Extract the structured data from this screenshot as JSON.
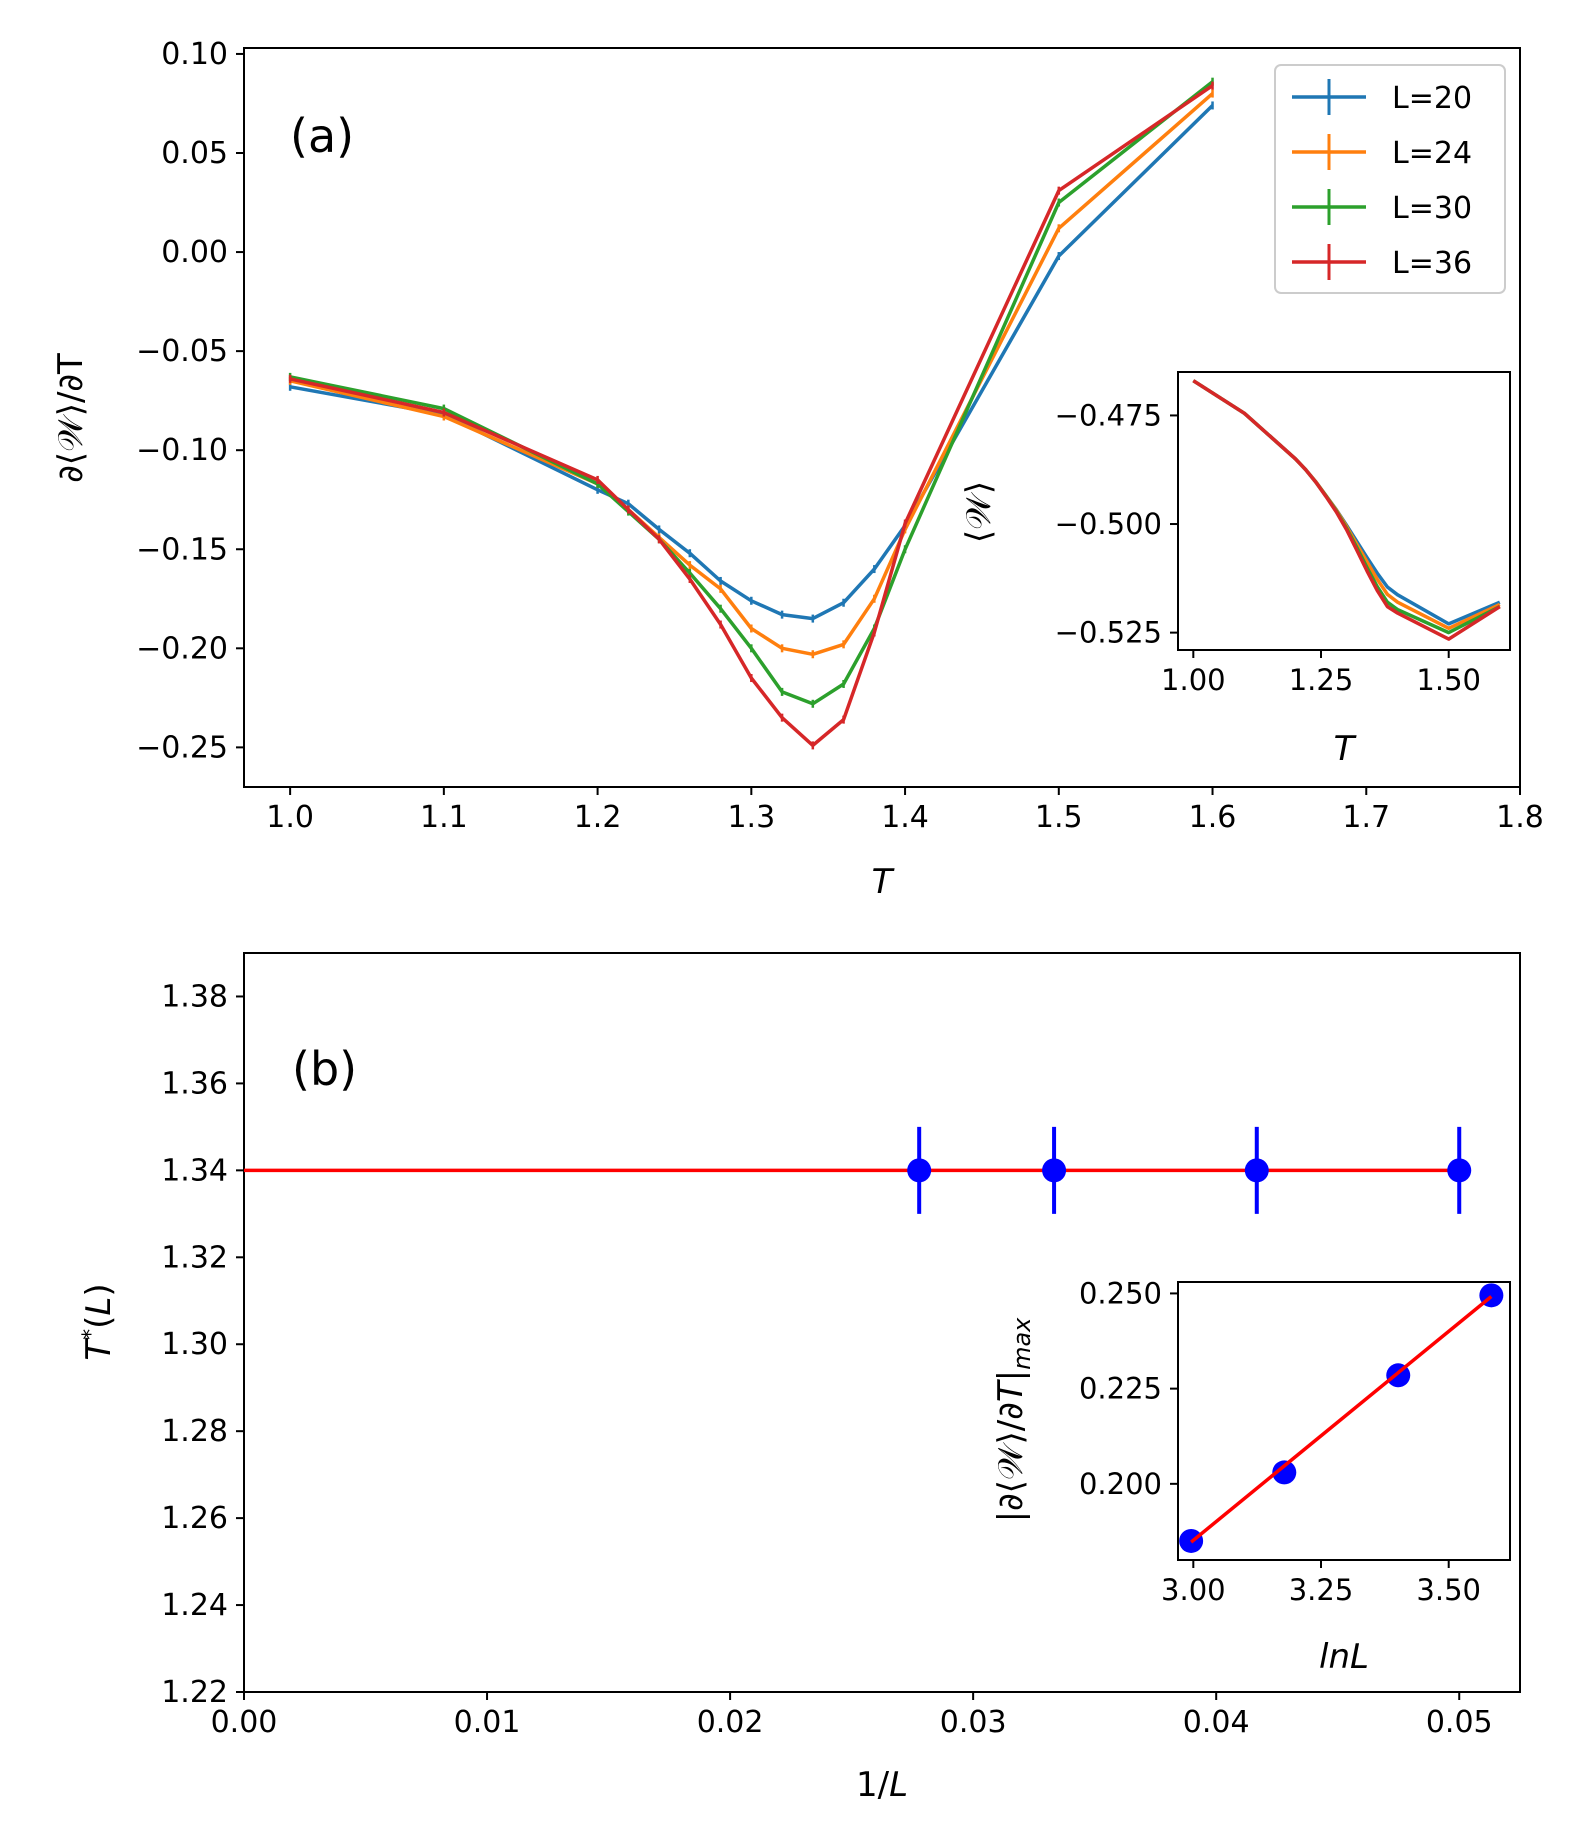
{
  "chart_data": [
    {
      "id": "a",
      "type": "line",
      "panel_label": "(a)",
      "title": "",
      "xlabel": "T",
      "ylabel": "∂⟨𝒲⟩/∂T",
      "xlim": [
        0.97,
        1.8
      ],
      "ylim": [
        -0.27,
        0.103
      ],
      "xticks": [
        1.0,
        1.1,
        1.2,
        1.3,
        1.4,
        1.5,
        1.6,
        1.7,
        1.8
      ],
      "xtick_labels": [
        "1.0",
        "1.1",
        "1.2",
        "1.3",
        "1.4",
        "1.5",
        "1.6",
        "1.7",
        "1.8"
      ],
      "yticks": [
        0.1,
        0.05,
        0.0,
        -0.05,
        -0.1,
        -0.15,
        -0.2,
        -0.25
      ],
      "ytick_labels": [
        "0.10",
        "0.05",
        "0.00",
        "−0.05",
        "−0.10",
        "−0.15",
        "−0.20",
        "−0.25"
      ],
      "legend_position": "top-right",
      "x": [
        1.0,
        1.1,
        1.2,
        1.22,
        1.24,
        1.26,
        1.28,
        1.3,
        1.32,
        1.34,
        1.36,
        1.38,
        1.4,
        1.5,
        1.6
      ],
      "series": [
        {
          "name": "L=20",
          "color": "#1f77b4",
          "values": [
            -0.068,
            -0.082,
            -0.12,
            -0.127,
            -0.14,
            -0.152,
            -0.166,
            -0.176,
            -0.183,
            -0.185,
            -0.177,
            -0.16,
            -0.138,
            -0.002,
            0.074
          ]
        },
        {
          "name": "L=24",
          "color": "#ff7f0e",
          "values": [
            -0.065,
            -0.083,
            -0.117,
            -0.13,
            -0.144,
            -0.158,
            -0.17,
            -0.19,
            -0.2,
            -0.203,
            -0.198,
            -0.175,
            -0.14,
            0.012,
            0.08
          ]
        },
        {
          "name": "L=30",
          "color": "#2ca02c",
          "values": [
            -0.063,
            -0.079,
            -0.117,
            -0.131,
            -0.145,
            -0.162,
            -0.18,
            -0.2,
            -0.222,
            -0.228,
            -0.218,
            -0.19,
            -0.15,
            0.025,
            0.086
          ]
        },
        {
          "name": "L=36",
          "color": "#d62728",
          "values": [
            -0.064,
            -0.081,
            -0.115,
            -0.13,
            -0.145,
            -0.165,
            -0.188,
            -0.215,
            -0.235,
            -0.249,
            -0.236,
            -0.192,
            -0.137,
            0.031,
            0.084
          ]
        }
      ],
      "inset": {
        "type": "line",
        "title": "",
        "xlabel": "T",
        "ylabel": "⟨𝒲⟩",
        "xlim": [
          0.97,
          1.62
        ],
        "ylim": [
          -0.529,
          -0.465
        ],
        "xticks": [
          1.0,
          1.25,
          1.5
        ],
        "xtick_labels": [
          "1.00",
          "1.25",
          "1.50"
        ],
        "yticks": [
          -0.475,
          -0.5,
          -0.525
        ],
        "ytick_labels": [
          "−0.475",
          "−0.500",
          "−0.525"
        ],
        "x": [
          1.0,
          1.1,
          1.2,
          1.22,
          1.24,
          1.26,
          1.28,
          1.3,
          1.32,
          1.34,
          1.36,
          1.38,
          1.4,
          1.5,
          1.6
        ],
        "series": [
          {
            "name": "L=20",
            "color": "#1f77b4",
            "values": [
              -0.467,
              -0.4745,
              -0.485,
              -0.4875,
              -0.4903,
              -0.4935,
              -0.4967,
              -0.5003,
              -0.504,
              -0.5077,
              -0.5113,
              -0.5145,
              -0.5163,
              -0.523,
              -0.518
            ]
          },
          {
            "name": "L=24",
            "color": "#ff7f0e",
            "values": [
              -0.467,
              -0.4745,
              -0.485,
              -0.4875,
              -0.4903,
              -0.4935,
              -0.4968,
              -0.5006,
              -0.5047,
              -0.5087,
              -0.5127,
              -0.5162,
              -0.518,
              -0.524,
              -0.5185
            ]
          },
          {
            "name": "L=30",
            "color": "#2ca02c",
            "values": [
              -0.467,
              -0.4745,
              -0.485,
              -0.4875,
              -0.4904,
              -0.4936,
              -0.497,
              -0.501,
              -0.5054,
              -0.51,
              -0.5144,
              -0.518,
              -0.5197,
              -0.525,
              -0.519
            ]
          },
          {
            "name": "L=36",
            "color": "#d62728",
            "values": [
              -0.467,
              -0.4745,
              -0.485,
              -0.4875,
              -0.4904,
              -0.4937,
              -0.4972,
              -0.5013,
              -0.506,
              -0.5108,
              -0.5153,
              -0.519,
              -0.5205,
              -0.5265,
              -0.519
            ]
          }
        ]
      }
    },
    {
      "id": "b",
      "type": "scatter",
      "panel_label": "(b)",
      "title": "",
      "xlabel": "1/L",
      "ylabel": "T*(L)",
      "xlim": [
        0.0,
        0.0525
      ],
      "ylim": [
        1.22,
        1.39
      ],
      "xticks": [
        0.0,
        0.01,
        0.02,
        0.03,
        0.04,
        0.05
      ],
      "xtick_labels": [
        "0.00",
        "0.01",
        "0.02",
        "0.03",
        "0.04",
        "0.05"
      ],
      "yticks": [
        1.38,
        1.36,
        1.34,
        1.32,
        1.3,
        1.28,
        1.26,
        1.24,
        1.22
      ],
      "ytick_labels": [
        "1.38",
        "1.36",
        "1.34",
        "1.32",
        "1.30",
        "1.28",
        "1.26",
        "1.24",
        "1.22"
      ],
      "fit_line": {
        "color": "#ff0000",
        "y": 1.34,
        "x_range": [
          0.0,
          0.05
        ]
      },
      "points": {
        "color": "#0000ff",
        "x": [
          0.02778,
          0.03333,
          0.04167,
          0.05
        ],
        "y": [
          1.34,
          1.34,
          1.34,
          1.34
        ],
        "yerr": [
          0.01,
          0.01,
          0.01,
          0.01
        ]
      },
      "inset": {
        "type": "scatter",
        "title": "",
        "xlabel": "lnL",
        "ylabel": "|∂⟨𝒲⟩/∂T|max",
        "xlim": [
          2.97,
          3.62
        ],
        "ylim": [
          0.18,
          0.253
        ],
        "xticks": [
          3.0,
          3.25,
          3.5
        ],
        "xtick_labels": [
          "3.00",
          "3.25",
          "3.50"
        ],
        "yticks": [
          0.25,
          0.225,
          0.2
        ],
        "ytick_labels": [
          "0.250",
          "0.225",
          "0.200"
        ],
        "points": {
          "color": "#0000ff",
          "x": [
            2.9957,
            3.1781,
            3.4012,
            3.5835
          ],
          "y": [
            0.185,
            0.203,
            0.2285,
            0.2495
          ]
        },
        "fit_line": {
          "color": "#ff0000",
          "x": [
            2.9957,
            3.5835
          ],
          "y": [
            0.1847,
            0.2492
          ]
        }
      }
    }
  ]
}
